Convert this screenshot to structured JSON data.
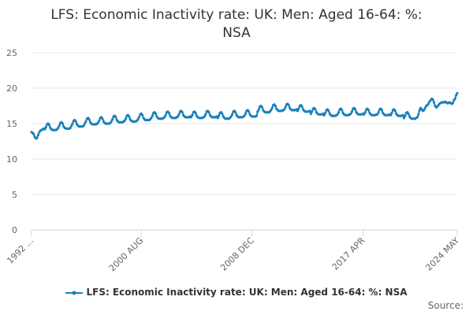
{
  "chart_data": {
    "type": "line",
    "title": "LFS: Economic Inactivity rate: UK: Men: Aged 16-64: %: NSA",
    "source": "Source:",
    "categories": [
      "1992 ...",
      null,
      null,
      null,
      null,
      null,
      null,
      null,
      null,
      null,
      null,
      null,
      null,
      null,
      null,
      null,
      null,
      null,
      null,
      null,
      null,
      null,
      null,
      null,
      null,
      null,
      null,
      null,
      null,
      null,
      null,
      null,
      null,
      null,
      null,
      null,
      null,
      null,
      null,
      null,
      null,
      null,
      null,
      null,
      null,
      null,
      null,
      null,
      null,
      null,
      null,
      null,
      null,
      null,
      null,
      null,
      null,
      null,
      null,
      null,
      null,
      null,
      null,
      null,
      null,
      null,
      null,
      null,
      null,
      null,
      null,
      null,
      null,
      null,
      null,
      null,
      null,
      null,
      null,
      null,
      null,
      null,
      null,
      null,
      null,
      null,
      null,
      null,
      null,
      null,
      null,
      null,
      null,
      null,
      null,
      null,
      null,
      null,
      null,
      "2000 AUG",
      null,
      null,
      null,
      null,
      null,
      null,
      null,
      null,
      null,
      null,
      null,
      null,
      null,
      null,
      null,
      null,
      null,
      null,
      null,
      null,
      null,
      null,
      null,
      null,
      null,
      null,
      null,
      null,
      null,
      null,
      null,
      null,
      null,
      null,
      null,
      null,
      null,
      null,
      null,
      null,
      null,
      null,
      null,
      null,
      null,
      null,
      null,
      null,
      null,
      null,
      null,
      null,
      null,
      null,
      null,
      null,
      null,
      null,
      null,
      null,
      null,
      null,
      null,
      null,
      null,
      null,
      null,
      null,
      null,
      null,
      null,
      null,
      null,
      null,
      null,
      null,
      null,
      null,
      null,
      null,
      null,
      null,
      null,
      null,
      null,
      null,
      null,
      null,
      null,
      null,
      null,
      null,
      null,
      null,
      null,
      null,
      null,
      null,
      null,
      "2008 DEC",
      null,
      null,
      null,
      null,
      null,
      null,
      null,
      null,
      null,
      null,
      null,
      null,
      null,
      null,
      null,
      null,
      null,
      null,
      null,
      null,
      null,
      null,
      null,
      null,
      null,
      null,
      null,
      null,
      null,
      null,
      null,
      null,
      null,
      null,
      null,
      null,
      null,
      null,
      null,
      null,
      null,
      null,
      null,
      null,
      null,
      null,
      null,
      null,
      null,
      null,
      null,
      null,
      null,
      null,
      null,
      null,
      null,
      null,
      null,
      null,
      null,
      null,
      null,
      null,
      null,
      null,
      null,
      null,
      null,
      null,
      null,
      null,
      null,
      null,
      null,
      null,
      null,
      null,
      null,
      null,
      null,
      null,
      null,
      null,
      null,
      null,
      null,
      null,
      null,
      null,
      null,
      null,
      null,
      null,
      null,
      null,
      null,
      null,
      null,
      "2017 APR",
      null,
      null,
      null,
      null,
      null,
      null,
      null,
      null,
      null,
      null,
      null,
      null,
      null,
      null,
      null,
      null,
      null,
      null,
      null,
      null,
      null,
      null,
      null,
      null,
      null,
      null,
      null,
      null,
      null,
      null,
      null,
      null,
      null,
      null,
      null,
      null,
      null,
      null,
      null,
      null,
      null,
      null,
      null,
      null,
      null,
      null,
      null,
      null,
      null,
      null,
      null,
      null,
      null,
      null,
      null,
      null,
      null,
      null,
      null,
      null,
      null,
      null,
      null,
      null,
      null,
      null,
      null,
      null,
      null,
      null,
      null,
      null,
      null,
      null,
      null,
      null,
      null,
      null,
      null,
      null,
      null,
      null,
      null,
      null,
      "2024 MAY"
    ],
    "series": [
      {
        "name": "LFS: Economic Inactivity rate: UK: Men: Aged 16-64: %: NSA",
        "color": "#1a80bb",
        "values": [
          13.8,
          13.7,
          13.5,
          13.1,
          12.9,
          13.0,
          13.4,
          13.8,
          14.0,
          14.1,
          14.2,
          14.3,
          14.2,
          14.5,
          14.9,
          15.0,
          14.8,
          14.4,
          14.2,
          14.1,
          14.1,
          14.1,
          14.1,
          14.2,
          14.4,
          14.7,
          15.1,
          15.2,
          15.0,
          14.6,
          14.4,
          14.3,
          14.3,
          14.3,
          14.3,
          14.4,
          14.7,
          15.0,
          15.4,
          15.5,
          15.3,
          14.9,
          14.7,
          14.6,
          14.6,
          14.6,
          14.6,
          14.7,
          15.0,
          15.3,
          15.7,
          15.8,
          15.6,
          15.2,
          15.0,
          14.9,
          14.9,
          14.9,
          14.9,
          15.0,
          15.1,
          15.4,
          15.8,
          15.9,
          15.7,
          15.3,
          15.1,
          15.0,
          15.0,
          15.0,
          15.0,
          15.1,
          15.3,
          15.6,
          16.0,
          16.1,
          15.9,
          15.5,
          15.3,
          15.2,
          15.2,
          15.2,
          15.2,
          15.3,
          15.4,
          15.7,
          16.1,
          16.2,
          16.0,
          15.6,
          15.4,
          15.3,
          15.3,
          15.3,
          15.3,
          15.4,
          15.6,
          15.9,
          16.3,
          16.4,
          16.2,
          15.8,
          15.6,
          15.5,
          15.5,
          15.5,
          15.5,
          15.6,
          15.8,
          16.1,
          16.5,
          16.6,
          16.4,
          16.0,
          15.8,
          15.7,
          15.7,
          15.7,
          15.7,
          15.8,
          15.9,
          16.2,
          16.6,
          16.7,
          16.5,
          16.1,
          15.9,
          15.8,
          15.8,
          15.8,
          15.8,
          15.9,
          16.0,
          16.3,
          16.7,
          16.8,
          16.6,
          16.2,
          16.0,
          15.9,
          15.9,
          15.9,
          15.9,
          16.0,
          15.9,
          16.2,
          16.6,
          16.7,
          16.5,
          16.1,
          15.9,
          15.8,
          15.8,
          15.8,
          15.8,
          15.9,
          16.0,
          16.3,
          16.7,
          16.8,
          16.6,
          16.2,
          16.0,
          15.9,
          15.9,
          15.9,
          15.9,
          16.0,
          15.8,
          16.1,
          16.5,
          16.6,
          16.4,
          16.0,
          15.8,
          15.7,
          15.7,
          15.7,
          15.7,
          15.8,
          16.0,
          16.3,
          16.7,
          16.8,
          16.6,
          16.2,
          16.0,
          15.9,
          15.9,
          15.9,
          15.9,
          16.0,
          16.1,
          16.4,
          16.8,
          16.9,
          16.7,
          16.3,
          16.1,
          16.0,
          16.0,
          16.0,
          16.0,
          16.1,
          16.7,
          17.0,
          17.4,
          17.5,
          17.3,
          16.9,
          16.7,
          16.6,
          16.6,
          16.6,
          16.6,
          16.7,
          16.9,
          17.2,
          17.6,
          17.7,
          17.5,
          17.1,
          16.9,
          16.8,
          16.8,
          16.8,
          16.8,
          16.9,
          17.0,
          17.3,
          17.7,
          17.8,
          17.6,
          17.2,
          17.0,
          16.9,
          16.9,
          16.9,
          16.9,
          17.0,
          16.8,
          17.1,
          17.5,
          17.6,
          17.4,
          17.0,
          16.8,
          16.7,
          16.7,
          16.7,
          16.7,
          16.8,
          16.4,
          16.7,
          17.1,
          17.2,
          17.0,
          16.6,
          16.4,
          16.3,
          16.3,
          16.3,
          16.3,
          16.4,
          16.2,
          16.5,
          16.9,
          17.0,
          16.8,
          16.4,
          16.2,
          16.1,
          16.1,
          16.1,
          16.1,
          16.2,
          16.3,
          16.6,
          17.0,
          17.1,
          16.9,
          16.5,
          16.3,
          16.2,
          16.2,
          16.2,
          16.2,
          16.3,
          16.4,
          16.7,
          17.1,
          17.2,
          17.0,
          16.6,
          16.4,
          16.3,
          16.3,
          16.3,
          16.3,
          16.4,
          16.3,
          16.6,
          17.0,
          17.1,
          16.9,
          16.5,
          16.3,
          16.2,
          16.2,
          16.2,
          16.2,
          16.3,
          16.3,
          16.6,
          17.0,
          17.1,
          16.9,
          16.5,
          16.3,
          16.2,
          16.2,
          16.2,
          16.2,
          16.3,
          16.2,
          16.5,
          16.9,
          17.0,
          16.8,
          16.4,
          16.2,
          16.1,
          16.1,
          16.1,
          16.1,
          16.2,
          15.8,
          16.1,
          16.5,
          16.6,
          16.4,
          16.0,
          15.8,
          15.7,
          15.7,
          15.7,
          15.7,
          15.8,
          15.9,
          16.3,
          16.9,
          17.2,
          17.0,
          16.8,
          16.9,
          17.2,
          17.5,
          17.6,
          17.8,
          18.1,
          18.3,
          18.5,
          18.4,
          18.0,
          17.5,
          17.3,
          17.4,
          17.6,
          17.8,
          17.9,
          18.0,
          18.0,
          18.0,
          18.1,
          18.0,
          17.9,
          17.9,
          18.0,
          17.9,
          17.8,
          17.9,
          18.3,
          18.5,
          19.0,
          19.3
        ]
      }
    ],
    "ylim": [
      0,
      25
    ],
    "yticks": [
      0,
      5,
      10,
      15,
      20,
      25
    ],
    "grid": true
  }
}
